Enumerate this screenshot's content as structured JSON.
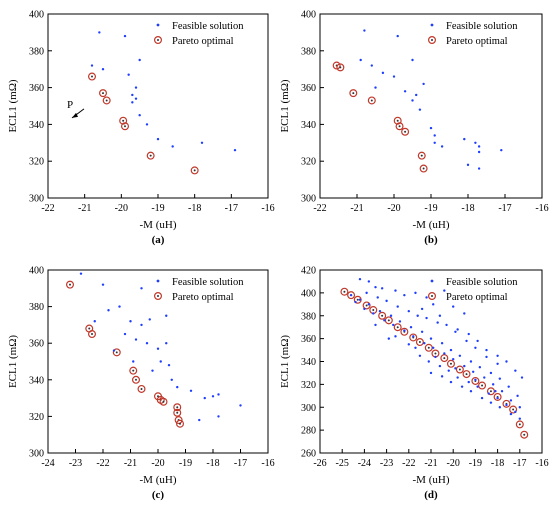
{
  "chart_data": [
    {
      "type": "scatter",
      "panel_label": "(a)",
      "xlabel": "-M (uH)",
      "ylabel": "ECL1 (mΩ)",
      "xlim": [
        -22,
        -16
      ],
      "ylim": [
        300,
        400
      ],
      "xticks": [
        -22,
        -21,
        -20,
        -19,
        -18,
        -17,
        -16
      ],
      "yticks": [
        300,
        320,
        340,
        360,
        380,
        400
      ],
      "legend": [
        "Feasible solution",
        "Pareto optimal"
      ],
      "legend_position": "top-right",
      "annotation": "P",
      "feasible": [
        [
          -20.6,
          390
        ],
        [
          -19.9,
          388
        ],
        [
          -20.8,
          372
        ],
        [
          -20.5,
          370
        ],
        [
          -19.5,
          375
        ],
        [
          -19.8,
          367
        ],
        [
          -19.6,
          360
        ],
        [
          -19.7,
          356
        ],
        [
          -19.6,
          354
        ],
        [
          -19.7,
          352
        ],
        [
          -19.5,
          345
        ],
        [
          -19.3,
          340
        ],
        [
          -19.0,
          332
        ],
        [
          -18.6,
          328
        ],
        [
          -17.8,
          330
        ],
        [
          -16.9,
          326
        ]
      ],
      "pareto": [
        [
          -20.8,
          366
        ],
        [
          -20.5,
          357
        ],
        [
          -20.4,
          353
        ],
        [
          -19.95,
          342
        ],
        [
          -19.9,
          339
        ],
        [
          -19.2,
          323
        ],
        [
          -18.0,
          315
        ]
      ]
    },
    {
      "type": "scatter",
      "panel_label": "(b)",
      "xlabel": "-M (uH)",
      "ylabel": "ECL1 (mΩ)",
      "xlim": [
        -22,
        -16
      ],
      "ylim": [
        300,
        400
      ],
      "xticks": [
        -22,
        -21,
        -20,
        -19,
        -18,
        -17,
        -16
      ],
      "yticks": [
        300,
        320,
        340,
        360,
        380,
        400
      ],
      "legend": [
        "Feasible solution",
        "Pareto optimal"
      ],
      "legend_position": "top-right",
      "feasible": [
        [
          -20.8,
          391
        ],
        [
          -19.9,
          388
        ],
        [
          -20.9,
          375
        ],
        [
          -20.6,
          372
        ],
        [
          -20.3,
          368
        ],
        [
          -20.0,
          366
        ],
        [
          -19.5,
          375
        ],
        [
          -19.7,
          358
        ],
        [
          -19.4,
          356
        ],
        [
          -19.5,
          353
        ],
        [
          -20.5,
          360
        ],
        [
          -19.2,
          362
        ],
        [
          -19.3,
          348
        ],
        [
          -19.0,
          338
        ],
        [
          -18.9,
          334
        ],
        [
          -18.7,
          328
        ],
        [
          -18.1,
          332
        ],
        [
          -17.8,
          330
        ],
        [
          -17.7,
          328
        ],
        [
          -17.7,
          325
        ],
        [
          -17.1,
          326
        ],
        [
          -18.0,
          318
        ],
        [
          -17.7,
          316
        ],
        [
          -18.9,
          330
        ]
      ],
      "pareto": [
        [
          -21.55,
          372
        ],
        [
          -21.45,
          371
        ],
        [
          -21.1,
          357
        ],
        [
          -20.6,
          353
        ],
        [
          -19.9,
          342
        ],
        [
          -19.85,
          339
        ],
        [
          -19.7,
          336
        ],
        [
          -19.25,
          323
        ],
        [
          -19.2,
          316
        ]
      ]
    },
    {
      "type": "scatter",
      "panel_label": "(c)",
      "xlabel": "-M (uH)",
      "ylabel": "ECL1 (mΩ)",
      "xlim": [
        -24,
        -16
      ],
      "ylim": [
        300,
        400
      ],
      "xticks": [
        -24,
        -23,
        -22,
        -21,
        -20,
        -19,
        -18,
        -17,
        -16
      ],
      "yticks": [
        300,
        320,
        340,
        360,
        380,
        400
      ],
      "legend": [
        "Feasible solution",
        "Pareto optimal"
      ],
      "legend_position": "top-right",
      "feasible": [
        [
          -22.8,
          398
        ],
        [
          -22.0,
          392
        ],
        [
          -20.6,
          390
        ],
        [
          -21.8,
          378
        ],
        [
          -21.4,
          380
        ],
        [
          -21.0,
          372
        ],
        [
          -20.6,
          370
        ],
        [
          -20.3,
          373
        ],
        [
          -19.7,
          375
        ],
        [
          -21.2,
          365
        ],
        [
          -20.8,
          362
        ],
        [
          -20.4,
          360
        ],
        [
          -20.0,
          357
        ],
        [
          -19.7,
          360
        ],
        [
          -19.9,
          350
        ],
        [
          -19.6,
          348
        ],
        [
          -19.5,
          340
        ],
        [
          -19.3,
          336
        ],
        [
          -18.8,
          334
        ],
        [
          -18.3,
          330
        ],
        [
          -18.0,
          331
        ],
        [
          -17.8,
          332
        ],
        [
          -17.0,
          326
        ],
        [
          -18.5,
          318
        ],
        [
          -17.8,
          320
        ],
        [
          -22.3,
          372
        ],
        [
          -21.6,
          356
        ],
        [
          -20.9,
          350
        ],
        [
          -20.2,
          345
        ]
      ],
      "pareto": [
        [
          -23.2,
          392
        ],
        [
          -22.5,
          368
        ],
        [
          -22.4,
          365
        ],
        [
          -21.5,
          355
        ],
        [
          -20.9,
          345
        ],
        [
          -20.8,
          340
        ],
        [
          -20.6,
          335
        ],
        [
          -20.0,
          331
        ],
        [
          -19.9,
          329
        ],
        [
          -19.8,
          328
        ],
        [
          -19.3,
          325
        ],
        [
          -19.3,
          322
        ],
        [
          -19.25,
          318
        ],
        [
          -19.2,
          316
        ]
      ]
    },
    {
      "type": "scatter",
      "panel_label": "(d)",
      "xlabel": "-M (uH)",
      "ylabel": "ECL1 (mΩ)",
      "xlim": [
        -26,
        -16
      ],
      "ylim": [
        260,
        420
      ],
      "xticks": [
        -26,
        -25,
        -24,
        -23,
        -22,
        -21,
        -20,
        -19,
        -18,
        -17,
        -16
      ],
      "yticks": [
        260,
        280,
        300,
        320,
        340,
        360,
        380,
        400,
        420
      ],
      "legend": [
        "Feasible solution",
        "Pareto optimal"
      ],
      "legend_position": "top-right",
      "feasible_note": "dense cloud above the front",
      "feasible": [
        [
          -24.2,
          412
        ],
        [
          -23.8,
          410
        ],
        [
          -23.5,
          405
        ],
        [
          -23.2,
          404
        ],
        [
          -22.6,
          402
        ],
        [
          -22.2,
          398
        ],
        [
          -21.7,
          400
        ],
        [
          -21.2,
          396
        ],
        [
          -20.4,
          402
        ],
        [
          -20.9,
          390
        ],
        [
          -20.0,
          388
        ],
        [
          -19.5,
          382
        ],
        [
          -23.9,
          400
        ],
        [
          -23.4,
          396
        ],
        [
          -23.0,
          393
        ],
        [
          -22.5,
          388
        ],
        [
          -22.0,
          384
        ],
        [
          -21.6,
          380
        ],
        [
          -21.2,
          378
        ],
        [
          -20.7,
          374
        ],
        [
          -20.3,
          372
        ],
        [
          -19.8,
          368
        ],
        [
          -19.3,
          364
        ],
        [
          -18.9,
          358
        ],
        [
          -18.5,
          350
        ],
        [
          -18.0,
          345
        ],
        [
          -17.6,
          340
        ],
        [
          -17.2,
          332
        ],
        [
          -24.6,
          398
        ],
        [
          -24.2,
          394
        ],
        [
          -23.8,
          390
        ],
        [
          -23.3,
          384
        ],
        [
          -22.8,
          380
        ],
        [
          -22.4,
          375
        ],
        [
          -21.9,
          370
        ],
        [
          -21.4,
          366
        ],
        [
          -21.0,
          360
        ],
        [
          -20.5,
          356
        ],
        [
          -20.1,
          350
        ],
        [
          -19.7,
          345
        ],
        [
          -19.2,
          340
        ],
        [
          -18.8,
          335
        ],
        [
          -18.3,
          330
        ],
        [
          -17.9,
          325
        ],
        [
          -17.5,
          318
        ],
        [
          -17.1,
          310
        ],
        [
          -24.4,
          392
        ],
        [
          -24.0,
          386
        ],
        [
          -23.6,
          382
        ],
        [
          -23.1,
          376
        ],
        [
          -22.7,
          372
        ],
        [
          -22.2,
          367
        ],
        [
          -21.8,
          362
        ],
        [
          -21.3,
          356
        ],
        [
          -20.9,
          352
        ],
        [
          -20.4,
          347
        ],
        [
          -20.0,
          342
        ],
        [
          -19.5,
          336
        ],
        [
          -19.1,
          331
        ],
        [
          -18.6,
          326
        ],
        [
          -18.2,
          320
        ],
        [
          -17.8,
          314
        ],
        [
          -17.4,
          306
        ],
        [
          -17.0,
          300
        ],
        [
          -22.9,
          360
        ],
        [
          -22.0,
          355
        ],
        [
          -21.5,
          345
        ],
        [
          -21.1,
          340
        ],
        [
          -20.6,
          336
        ],
        [
          -20.2,
          332
        ],
        [
          -19.8,
          326
        ],
        [
          -19.3,
          322
        ],
        [
          -18.9,
          318
        ],
        [
          -18.4,
          312
        ],
        [
          -18.0,
          308
        ],
        [
          -17.6,
          302
        ],
        [
          -17.2,
          296
        ],
        [
          -23.5,
          372
        ],
        [
          -22.6,
          362
        ],
        [
          -21.7,
          352
        ],
        [
          -20.8,
          344
        ],
        [
          -19.9,
          334
        ],
        [
          -19.0,
          324
        ],
        [
          -18.1,
          314
        ],
        [
          -21.0,
          330
        ],
        [
          -20.5,
          327
        ],
        [
          -20.1,
          322
        ],
        [
          -19.6,
          318
        ],
        [
          -19.2,
          314
        ],
        [
          -18.7,
          308
        ],
        [
          -18.3,
          304
        ],
        [
          -17.9,
          300
        ],
        [
          -17.4,
          294
        ],
        [
          -17.0,
          290
        ],
        [
          -16.9,
          326
        ],
        [
          -18.0,
          338
        ],
        [
          -18.5,
          344
        ],
        [
          -19.0,
          352
        ],
        [
          -19.4,
          358
        ],
        [
          -19.9,
          366
        ],
        [
          -20.6,
          380
        ],
        [
          -21.4,
          386
        ]
      ],
      "pareto": [
        [
          -24.9,
          401
        ],
        [
          -24.6,
          398
        ],
        [
          -24.3,
          394
        ],
        [
          -23.9,
          389
        ],
        [
          -23.6,
          385
        ],
        [
          -23.2,
          380
        ],
        [
          -22.9,
          376
        ],
        [
          -22.5,
          370
        ],
        [
          -22.2,
          366
        ],
        [
          -21.8,
          361
        ],
        [
          -21.5,
          357
        ],
        [
          -21.1,
          352
        ],
        [
          -20.8,
          347
        ],
        [
          -20.4,
          343
        ],
        [
          -20.1,
          338
        ],
        [
          -19.7,
          333
        ],
        [
          -19.4,
          329
        ],
        [
          -19.0,
          323
        ],
        [
          -18.7,
          319
        ],
        [
          -18.3,
          314
        ],
        [
          -18.0,
          309
        ],
        [
          -17.6,
          303
        ],
        [
          -17.3,
          298
        ],
        [
          -17.0,
          285
        ],
        [
          -16.8,
          276
        ]
      ]
    }
  ]
}
